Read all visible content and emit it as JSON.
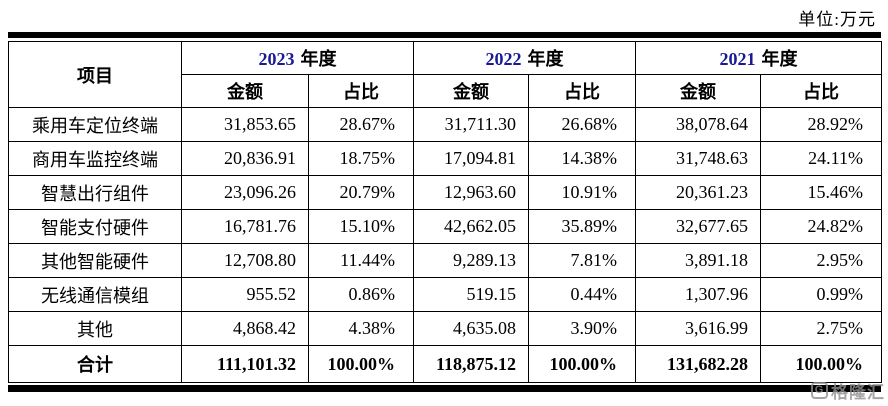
{
  "unit_label": "单位:万元",
  "table": {
    "item_header": "项目",
    "year_groups": [
      {
        "year": "2023",
        "suffix": "年度"
      },
      {
        "year": "2022",
        "suffix": "年度"
      },
      {
        "year": "2021",
        "suffix": "年度"
      }
    ],
    "sub_headers": {
      "amount": "金额",
      "ratio": "占比"
    },
    "rows": [
      {
        "label": "乘用车定位终端",
        "cells": [
          "31,853.65",
          "28.67%",
          "31,711.30",
          "26.68%",
          "38,078.64",
          "28.92%"
        ]
      },
      {
        "label": "商用车监控终端",
        "cells": [
          "20,836.91",
          "18.75%",
          "17,094.81",
          "14.38%",
          "31,748.63",
          "24.11%"
        ]
      },
      {
        "label": "智慧出行组件",
        "cells": [
          "23,096.26",
          "20.79%",
          "12,963.60",
          "10.91%",
          "20,361.23",
          "15.46%"
        ]
      },
      {
        "label": "智能支付硬件",
        "cells": [
          "16,781.76",
          "15.10%",
          "42,662.05",
          "35.89%",
          "32,677.65",
          "24.82%"
        ]
      },
      {
        "label": "其他智能硬件",
        "cells": [
          "12,708.80",
          "11.44%",
          "9,289.13",
          "7.81%",
          "3,891.18",
          "2.95%"
        ]
      },
      {
        "label": "无线通信模组",
        "cells": [
          "955.52",
          "0.86%",
          "519.15",
          "0.44%",
          "1,307.96",
          "0.99%"
        ]
      },
      {
        "label": "其他",
        "cells": [
          "4,868.42",
          "4.38%",
          "4,635.08",
          "3.90%",
          "3,616.99",
          "2.75%"
        ]
      }
    ],
    "total_row": {
      "label": "合计",
      "cells": [
        "111,101.32",
        "100.00%",
        "118,875.12",
        "100.00%",
        "131,682.28",
        "100.00%"
      ]
    }
  },
  "watermark": {
    "logo_letter": "G",
    "brand": "格隆汇"
  },
  "colors": {
    "year_digits": "#1a1a96",
    "text": "#000000",
    "watermark_gray": "#8f8f8f"
  }
}
